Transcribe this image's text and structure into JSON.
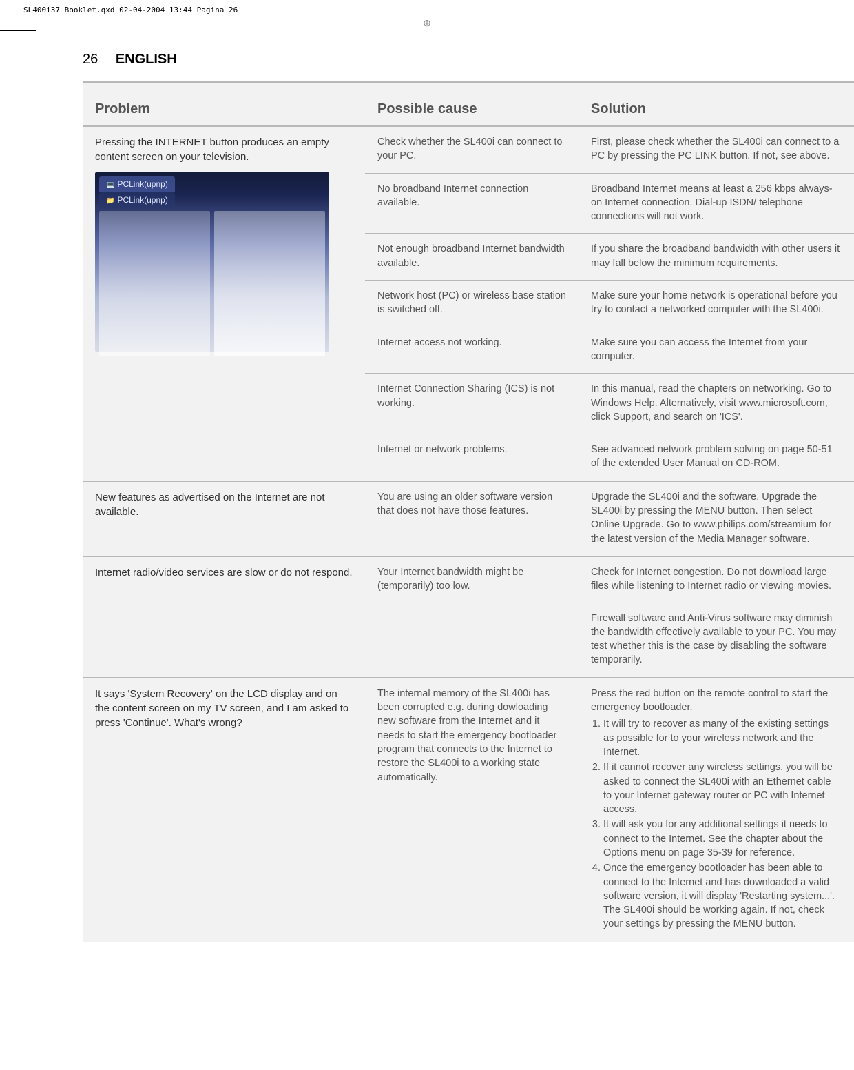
{
  "header": {
    "filename": "SL400i37_Booklet.qxd  02-04-2004  13:44  Pagina 26"
  },
  "page": {
    "number": "26",
    "language": "ENGLISH"
  },
  "columns": {
    "problem": "Problem",
    "cause": "Possible cause",
    "solution": "Solution"
  },
  "screenshot": {
    "tab1": "PCLink(upnp)",
    "tab2": "PCLink(upnp)"
  },
  "rows": [
    {
      "problem": "Pressing the INTERNET button produces an empty content screen on your television.",
      "cause": "Check whether the SL400i can connect to your PC.",
      "solution": "First, please check whether the SL400i can connect to a PC by pressing the PC LINK button. If not, see above."
    },
    {
      "cause": "No broadband Internet connection available.",
      "solution": "Broadband Internet means at least a 256 kbps always-on Internet connection. Dial-up ISDN/ telephone connections will not work."
    },
    {
      "cause": "Not enough broadband Internet bandwidth available.",
      "solution": "If you share the broadband bandwidth with other users it may fall below the minimum requirements."
    },
    {
      "cause": "Network host (PC) or wireless base station is switched off.",
      "solution": "Make sure your home network is operational before you try to contact a networked computer with the SL400i."
    },
    {
      "cause": "Internet access not working.",
      "solution": "Make sure you can access the Internet from your computer."
    },
    {
      "cause": "Internet Connection Sharing (ICS) is not working.",
      "solution": "In this manual, read the chapters on networking. Go to Windows Help. Alternatively, visit www.microsoft.com, click Support, and search on 'ICS'."
    },
    {
      "cause": "Internet or network problems.",
      "solution": "See advanced network problem solving on page 50-51 of the extended User Manual on CD-ROM."
    },
    {
      "problem": "New features as advertised on the Internet are not available.",
      "cause": "You are using an older software version that does not have those features.",
      "solution": "Upgrade the SL400i and the software. Upgrade the SL400i by pressing the MENU button. Then select Online Upgrade. Go to www.philips.com/streamium for the latest version of the Media Manager software."
    },
    {
      "problem": "Internet radio/video services are slow or do not respond.",
      "cause": "Your Internet bandwidth might be (temporarily) too low.",
      "solution": "Check for Internet congestion. Do not download large files while listening to Internet radio or viewing movies."
    },
    {
      "solution": "Firewall software and Anti-Virus software may diminish the bandwidth effectively available to your PC. You may test whether this is the case by disabling the software temporarily."
    },
    {
      "problem": "It says 'System Recovery' on the LCD display and on the content screen on my TV screen, and I am asked to press 'Continue'. What's wrong?",
      "cause": "The internal memory of the SL400i has been corrupted e.g. during dowloading new software from the Internet and it needs to start the emergency bootloader program that connects to the Internet to restore the SL400i to a working state automatically.",
      "solution_intro": "Press the red button on the remote control to start the emergency bootloader.",
      "solution_list": [
        "It will try to recover as many of the existing settings as possible for to your wireless network and the Internet.",
        "If it cannot recover any wireless settings, you will be asked to connect the SL400i with an Ethernet cable to your Internet gateway router or PC with Internet access.",
        "It will ask you for any additional settings it needs to connect to the Internet. See the chapter about the Options menu on page 35-39 for reference.",
        "Once the emergency bootloader has been able to connect to the Internet and has downloaded a valid software version, it will display 'Restarting system...'. The SL400i should be working again. If not, check your settings by pressing the MENU button."
      ]
    }
  ]
}
